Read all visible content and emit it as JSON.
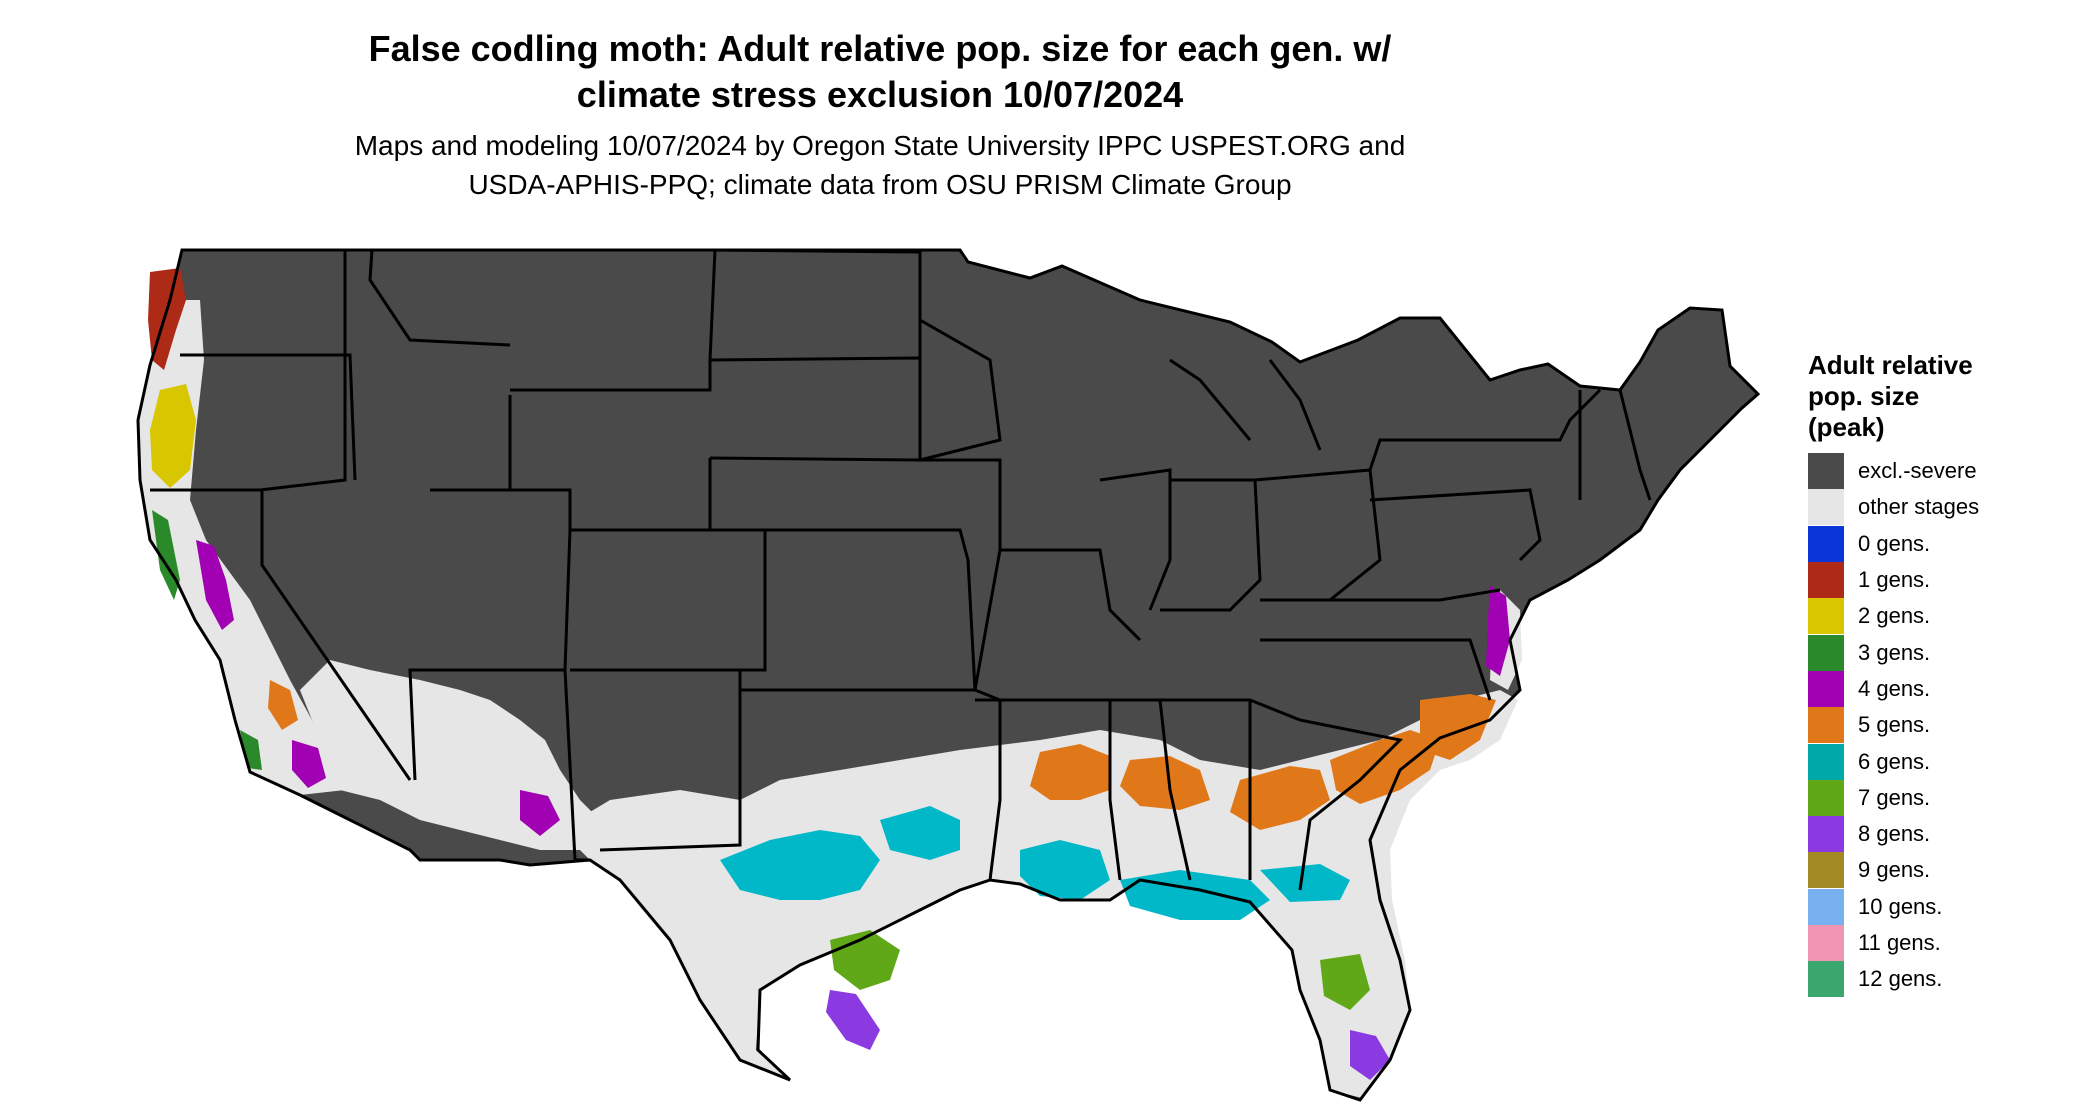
{
  "header": {
    "title_lines": [
      "False codling moth: Adult relative pop. size for each gen. w/",
      "climate stress exclusion 10/07/2024"
    ],
    "subtitle_lines": [
      "Maps and modeling 10/07/2024 by Oregon State University IPPC USPEST.ORG and",
      "USDA-APHIS-PPQ; climate data from OSU PRISM Climate Group"
    ]
  },
  "legend": {
    "title_lines": [
      "Adult relative",
      "pop. size",
      "(peak)"
    ],
    "items": [
      {
        "label": "excl.-severe",
        "color": "#4a4a4a"
      },
      {
        "label": "other stages",
        "color": "#e6e6e6"
      },
      {
        "label": "0 gens.",
        "color": "#0a36d8"
      },
      {
        "label": "1 gens.",
        "color": "#ad2a17"
      },
      {
        "label": "2 gens.",
        "color": "#d8c600"
      },
      {
        "label": "3 gens.",
        "color": "#2a8a2a"
      },
      {
        "label": "4 gens.",
        "color": "#a100b3"
      },
      {
        "label": "5 gens.",
        "color": "#e0781a"
      },
      {
        "label": "6 gens.",
        "color": "#00a8a8"
      },
      {
        "label": "7 gens.",
        "color": "#60a818"
      },
      {
        "label": "8 gens.",
        "color": "#8a3ae0"
      },
      {
        "label": "9 gens.",
        "color": "#a38a24"
      },
      {
        "label": "10 gens.",
        "color": "#78b0f0"
      },
      {
        "label": "11 gens.",
        "color": "#f096b4"
      },
      {
        "label": "12 gens.",
        "color": "#3aa86e"
      }
    ]
  }
}
